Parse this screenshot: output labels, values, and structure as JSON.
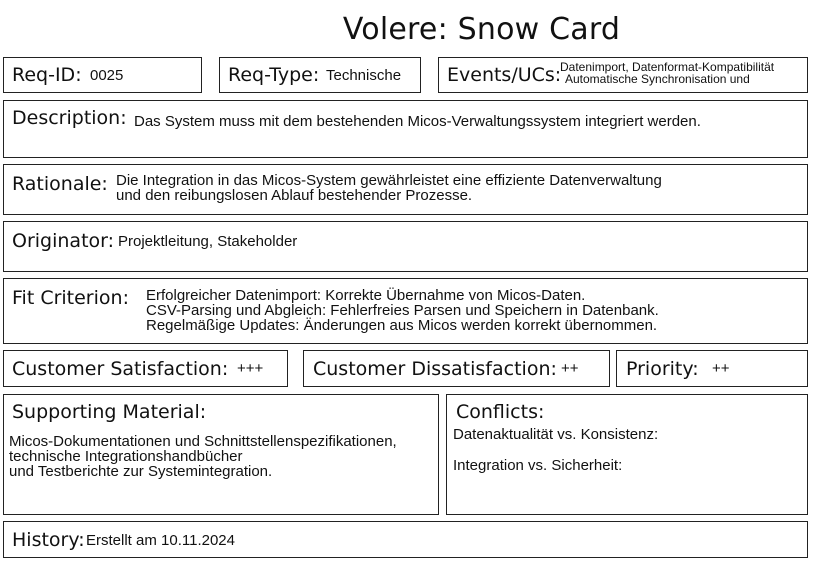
{
  "title": "Volere: Snow Card",
  "req_id": {
    "label": "Req-ID:",
    "value": "0025"
  },
  "req_type": {
    "label": "Req-Type:",
    "value": "Technische"
  },
  "events": {
    "label": "Events/UCs:",
    "line1": "Datenimport,  Datenformat-Kompatibilität",
    "line2": "Automatische Synchronisation und"
  },
  "description": {
    "label": "Description:",
    "value": "Das System muss mit dem bestehenden Micos-Verwaltungssystem integriert werden."
  },
  "rationale": {
    "label": "Rationale:",
    "line1": "Die Integration in das Micos-System gewährleistet eine effiziente Datenverwaltung",
    "line2": "und den reibungslosen Ablauf bestehender Prozesse."
  },
  "originator": {
    "label": "Originator:",
    "value": "Projektleitung, Stakeholder"
  },
  "fit_criterion": {
    "label": "Fit Criterion:",
    "line1": "Erfolgreicher Datenimport: Korrekte Übernahme von Micos-Daten.",
    "line2": "CSV-Parsing und Abgleich: Fehlerfreies Parsen und Speichern in Datenbank.",
    "line3": "Regelmäßige Updates: Änderungen aus Micos werden korrekt übernommen."
  },
  "customer_satisfaction": {
    "label": "Customer Satisfaction:",
    "value": "+++"
  },
  "customer_dissatisfaction": {
    "label": "Customer Dissatisfaction:",
    "value": "++"
  },
  "priority": {
    "label": "Priority:",
    "value": "++"
  },
  "supporting_material": {
    "label": "Supporting Material:",
    "line1": "Micos-Dokumentationen und Schnittstellenspezifikationen,",
    "line2": "technische Integrationshandbücher",
    "line3": "und Testberichte zur Systemintegration."
  },
  "conflicts": {
    "label": "Conflicts:",
    "line1": "Datenaktualität vs. Konsistenz:",
    "line2": "Integration vs. Sicherheit:"
  },
  "history": {
    "label": "History:",
    "value": "Erstellt am 10.11.2024"
  }
}
